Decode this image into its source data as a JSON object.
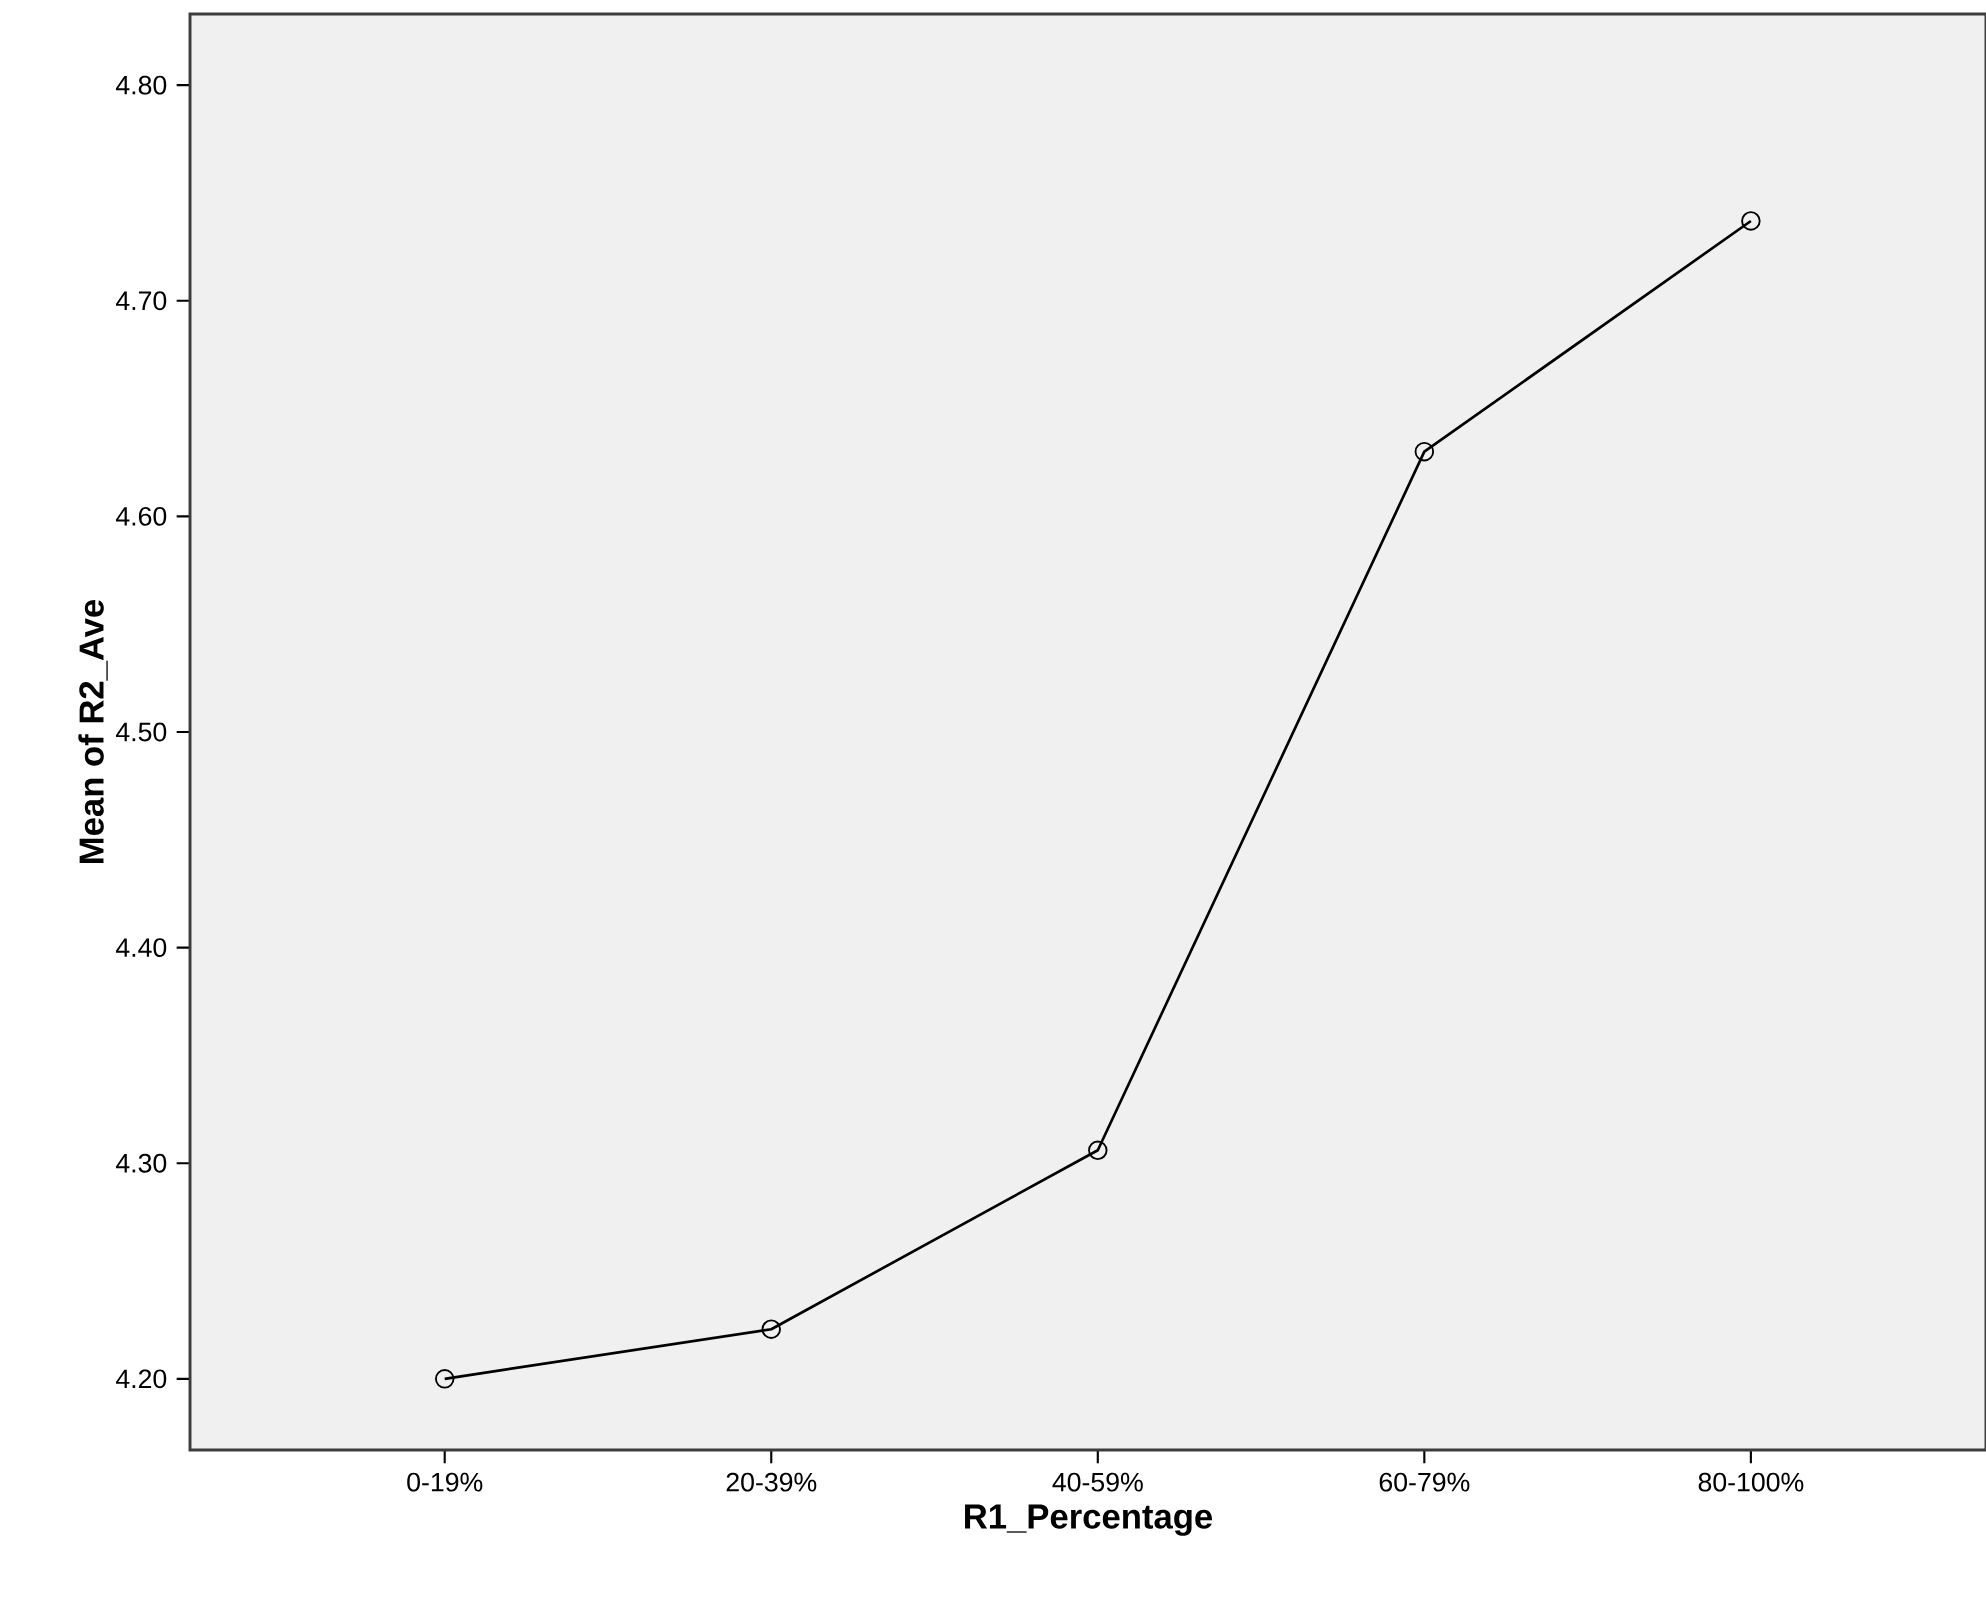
{
  "chart_data": {
    "type": "line",
    "xlabel": "R1_Percentage",
    "ylabel": "Mean of R2_Ave",
    "categories": [
      "0-19%",
      "20-39%",
      "40-59%",
      "60-79%",
      "80-100%"
    ],
    "values": [
      4.2,
      4.223,
      4.306,
      4.63,
      4.737
    ],
    "color": "#000000",
    "marker": "circle",
    "line_style": "solid",
    "ylim": [
      4.167,
      4.833
    ],
    "yticks": [
      {
        "value": 4.2,
        "label": "4.20"
      },
      {
        "value": 4.3,
        "label": "4.30"
      },
      {
        "value": 4.4,
        "label": "4.40"
      },
      {
        "value": 4.5,
        "label": "4.50"
      },
      {
        "value": 4.6,
        "label": "4.60"
      },
      {
        "value": 4.7,
        "label": "4.70"
      },
      {
        "value": 4.8,
        "label": "4.80"
      }
    ]
  }
}
